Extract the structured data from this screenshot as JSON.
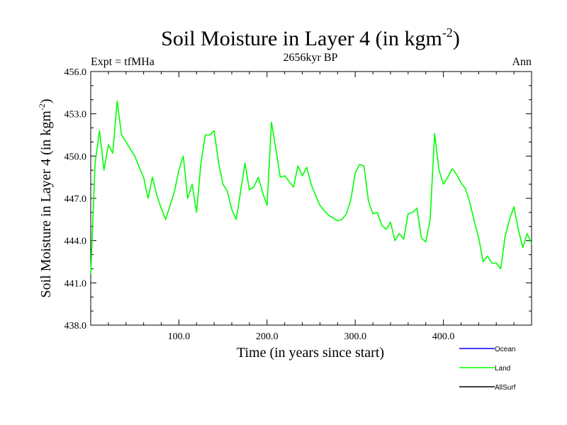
{
  "title_main": "Soil Moisture in Layer 4 (in kgm",
  "title_sup": "-2",
  "title_close": ")",
  "subtitle_left": "Expt = tfMHa",
  "subtitle_center": "2656kyr BP",
  "subtitle_right": "Ann",
  "chart_data": {
    "type": "line",
    "title": "Soil Moisture in Layer 4 (in kgm-2)",
    "xlabel": "Time (in years since start)",
    "ylabel_main": "Soil Moisture in Layer 4 (in kgm",
    "ylabel_sup": "-2",
    "ylabel_close": ")",
    "xlim": [
      0,
      500
    ],
    "ylim": [
      438.0,
      456.0
    ],
    "x_ticks": [
      100,
      200,
      300,
      400
    ],
    "x_tick_labels": [
      "100.0",
      "200.0",
      "300.0",
      "400.0"
    ],
    "y_ticks": [
      438,
      441,
      444,
      447,
      450,
      453,
      456
    ],
    "y_tick_labels": [
      "438.0",
      "441.0",
      "444.0",
      "447.0",
      "450.0",
      "453.0",
      "456.0"
    ],
    "legend": [
      {
        "name": "Ocean",
        "color": "#0000ff"
      },
      {
        "name": "Land",
        "color": "#00ff00"
      },
      {
        "name": "AllSurf",
        "color": "#000000"
      }
    ],
    "series": [
      {
        "name": "Land",
        "color": "#00ff00",
        "x_start": 0,
        "x_step": 5,
        "values": [
          441.6,
          449.5,
          451.8,
          449.0,
          450.8,
          450.2,
          453.9,
          451.5,
          451.0,
          450.5,
          450.0,
          449.2,
          448.5,
          447.0,
          448.5,
          447.2,
          446.3,
          445.5,
          446.5,
          447.5,
          449.0,
          450.0,
          447.0,
          448.0,
          446.0,
          449.5,
          451.5,
          451.5,
          451.8,
          449.5,
          448.0,
          447.5,
          446.2,
          445.5,
          447.5,
          449.5,
          447.6,
          447.8,
          448.5,
          447.4,
          446.5,
          452.4,
          450.5,
          448.5,
          448.6,
          448.2,
          447.8,
          449.3,
          448.6,
          449.2,
          448.0,
          447.2,
          446.5,
          446.1,
          445.8,
          445.6,
          445.4,
          445.5,
          445.9,
          446.9,
          448.8,
          449.4,
          449.3,
          446.8,
          445.9,
          446.0,
          445.1,
          444.8,
          445.3,
          444.0,
          444.5,
          444.1,
          445.9,
          446.0,
          446.3,
          444.2,
          443.9,
          445.5,
          451.6,
          449.0,
          448.0,
          448.5,
          449.1,
          448.7,
          448.1,
          447.7,
          446.7,
          445.4,
          444.2,
          442.5,
          442.9,
          442.4,
          442.4,
          442.0,
          444.3,
          445.5,
          446.4,
          444.8,
          443.5,
          444.5,
          443.8
        ]
      }
    ]
  }
}
